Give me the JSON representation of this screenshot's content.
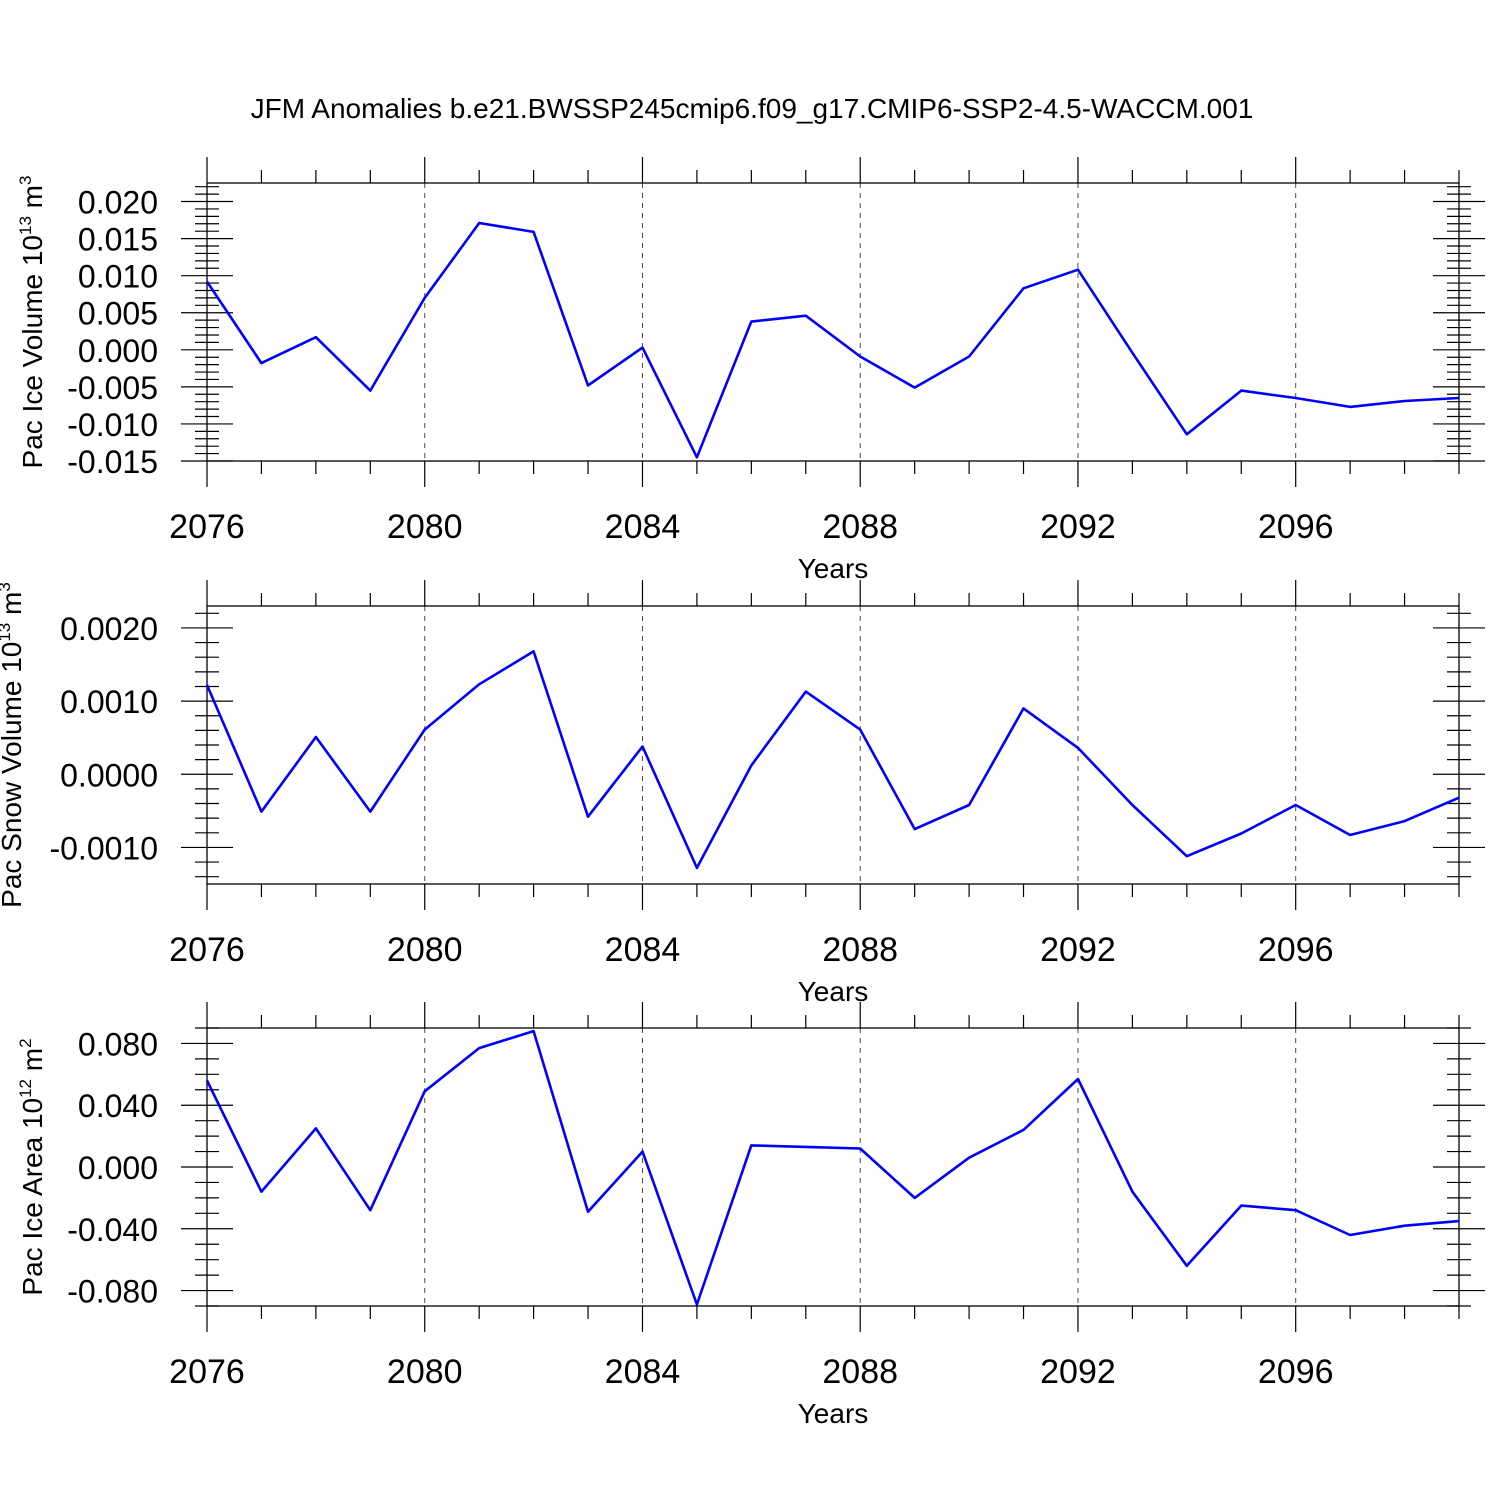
{
  "title": "JFM Anomalies b.e21.BWSSP245cmip6.f09_g17.CMIP6-SSP2-4.5-WACCM.001",
  "colors": {
    "series": "#0000ff",
    "axes": "#000000",
    "background": "#ffffff"
  },
  "chart_data": [
    {
      "type": "line",
      "ylabel_main": "Pac Ice Volume 10",
      "ylabel_exp": "13",
      "ylabel_unit": " m",
      "ylabel_unit_exp": "3",
      "xlabel": "Years",
      "xlim": [
        2076,
        2099
      ],
      "ylim": [
        -0.015,
        0.0225
      ],
      "x_ticks": [
        "2076",
        "2080",
        "2084",
        "2088",
        "2092",
        "2096"
      ],
      "y_ticks": [
        "0.020",
        "0.015",
        "0.010",
        "0.005",
        "0.000",
        "-0.005",
        "-0.010",
        "-0.015"
      ],
      "y_tick_values": [
        0.02,
        0.015,
        0.01,
        0.005,
        0.0,
        -0.005,
        -0.01,
        -0.015
      ],
      "y_minor_step": 0.001,
      "series": [
        {
          "name": "Pac Ice Volume",
          "x": [
            2076,
            2077,
            2078,
            2079,
            2080,
            2081,
            2082,
            2083,
            2084,
            2085,
            2086,
            2087,
            2088,
            2089,
            2090,
            2091,
            2092,
            2093,
            2094,
            2095,
            2096,
            2097,
            2098,
            2099
          ],
          "values": [
            0.0092,
            -0.0018,
            0.0017,
            -0.0055,
            0.007,
            0.0171,
            0.0159,
            -0.0048,
            0.0003,
            -0.0145,
            0.0038,
            0.0046,
            -0.0009,
            -0.0051,
            -0.0009,
            0.0083,
            0.0108,
            -0.0004,
            -0.0114,
            -0.0055,
            -0.0065,
            -0.0077,
            -0.0069,
            -0.0065
          ]
        }
      ]
    },
    {
      "type": "line",
      "ylabel_main": "Pac Snow Volume 10",
      "ylabel_exp": "13",
      "ylabel_unit": " m",
      "ylabel_unit_exp": "3",
      "xlabel": "Years",
      "xlim": [
        2076,
        2099
      ],
      "ylim": [
        -0.0015,
        0.0023
      ],
      "x_ticks": [
        "2076",
        "2080",
        "2084",
        "2088",
        "2092",
        "2096"
      ],
      "y_ticks": [
        "0.0020",
        "0.0010",
        "0.0000",
        "-0.0010"
      ],
      "y_tick_values": [
        0.002,
        0.001,
        0.0,
        -0.001
      ],
      "y_minor_step": 0.0002,
      "series": [
        {
          "name": "Pac Snow Volume",
          "x": [
            2076,
            2077,
            2078,
            2079,
            2080,
            2081,
            2082,
            2083,
            2084,
            2085,
            2086,
            2087,
            2088,
            2089,
            2090,
            2091,
            2092,
            2093,
            2094,
            2095,
            2096,
            2097,
            2098,
            2099
          ],
          "values": [
            0.00122,
            -0.00051,
            0.00051,
            -0.00051,
            0.00061,
            0.00123,
            0.00168,
            -0.00058,
            0.00038,
            -0.00128,
            0.00012,
            0.00113,
            0.00061,
            -0.00075,
            -0.00042,
            0.0009,
            0.00036,
            -0.00042,
            -0.00112,
            -0.00081,
            -0.00042,
            -0.00083,
            -0.00064,
            -0.00032
          ]
        }
      ]
    },
    {
      "type": "line",
      "ylabel_main": "Pac Ice Area 10",
      "ylabel_exp": "12",
      "ylabel_unit": " m",
      "ylabel_unit_exp": "2",
      "xlabel": "Years",
      "xlim": [
        2076,
        2099
      ],
      "ylim": [
        -0.09,
        0.09
      ],
      "x_ticks": [
        "2076",
        "2080",
        "2084",
        "2088",
        "2092",
        "2096"
      ],
      "y_ticks": [
        "0.080",
        "0.040",
        "0.000",
        "-0.040",
        "-0.080"
      ],
      "y_tick_values": [
        0.08,
        0.04,
        0.0,
        -0.04,
        -0.08
      ],
      "y_minor_step": 0.01,
      "series": [
        {
          "name": "Pac Ice Area",
          "x": [
            2076,
            2077,
            2078,
            2079,
            2080,
            2081,
            2082,
            2083,
            2084,
            2085,
            2086,
            2087,
            2088,
            2089,
            2090,
            2091,
            2092,
            2093,
            2094,
            2095,
            2096,
            2097,
            2098,
            2099
          ],
          "values": [
            0.056,
            -0.016,
            0.025,
            -0.028,
            0.049,
            0.077,
            0.088,
            -0.029,
            0.01,
            -0.089,
            0.014,
            0.013,
            0.012,
            -0.02,
            0.006,
            0.024,
            0.057,
            -0.016,
            -0.064,
            -0.025,
            -0.028,
            -0.044,
            -0.038,
            -0.035
          ]
        }
      ]
    }
  ]
}
